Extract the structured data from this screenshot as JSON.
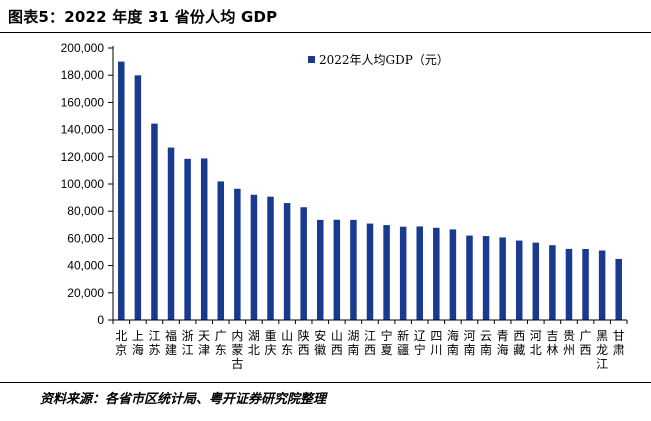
{
  "figure": {
    "title": "图表5：2022 年度 31 省份人均 GDP",
    "source": "资料来源：各省市区统计局、粤开证券研究院整理"
  },
  "colors": {
    "bar": "#1a3a8f",
    "axis": "#000000"
  },
  "chart_data": {
    "type": "bar",
    "title": "2022 年度 31 省份人均 GDP",
    "xlabel": "",
    "ylabel": "",
    "ylim": [
      0,
      200000
    ],
    "yticks": [
      0,
      20000,
      40000,
      60000,
      80000,
      100000,
      120000,
      140000,
      160000,
      180000,
      200000
    ],
    "ytick_labels": [
      "0",
      "20,000",
      "40,000",
      "60,000",
      "80,000",
      "100,000",
      "120,000",
      "140,000",
      "160,000",
      "180,000",
      "200,000"
    ],
    "legend": [
      "2022年人均GDP（元）"
    ],
    "legend_position": "top-center",
    "categories": [
      "北京",
      "上海",
      "江苏",
      "福建",
      "浙江",
      "天津",
      "广东",
      "内蒙古",
      "湖北",
      "重庆",
      "山东",
      "陕西",
      "安徽",
      "山西",
      "湖南",
      "江西",
      "宁夏",
      "新疆",
      "辽宁",
      "四川",
      "海南",
      "河南",
      "云南",
      "青海",
      "西藏",
      "河北",
      "吉林",
      "贵州",
      "广西",
      "黑龙江",
      "甘肃"
    ],
    "series": [
      {
        "name": "2022年人均GDP（元）",
        "values": [
          190000,
          179900,
          144400,
          126800,
          118500,
          118800,
          101900,
          96500,
          92100,
          90700,
          86000,
          82900,
          73600,
          73700,
          73600,
          70900,
          69800,
          68600,
          68800,
          67800,
          66600,
          62100,
          61700,
          60700,
          58400,
          56900,
          55000,
          52300,
          52200,
          51100,
          44900
        ]
      }
    ]
  }
}
